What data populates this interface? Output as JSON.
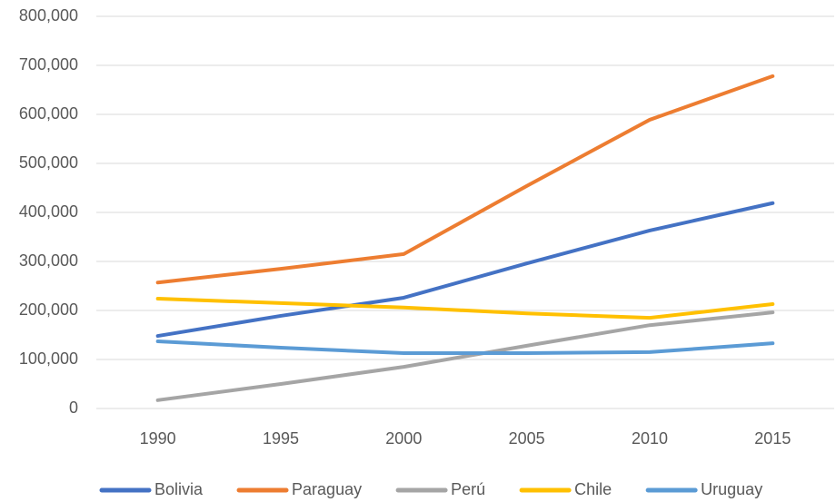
{
  "chart_data": {
    "type": "line",
    "categories": [
      "1990",
      "1995",
      "2000",
      "2005",
      "2010",
      "2015"
    ],
    "series": [
      {
        "name": "Bolivia",
        "color": "#4472c4",
        "values": [
          148000,
          189000,
          226000,
          296000,
          363000,
          419000
        ]
      },
      {
        "name": "Paraguay",
        "color": "#ed7d31",
        "values": [
          257000,
          285000,
          315000,
          454000,
          589000,
          678000
        ]
      },
      {
        "name": "Perú",
        "color": "#a5a5a5",
        "values": [
          17000,
          50000,
          85000,
          128000,
          170000,
          196000
        ]
      },
      {
        "name": "Chile",
        "color": "#ffc000",
        "values": [
          224000,
          215000,
          206000,
          194000,
          185000,
          213000
        ]
      },
      {
        "name": "Uruguay",
        "color": "#5b9bd5",
        "values": [
          137000,
          124000,
          113000,
          113000,
          115000,
          133000
        ]
      }
    ],
    "ylim": [
      0,
      800000
    ],
    "yticks": [
      0,
      {
        "value": 100000,
        "label": "100,000"
      },
      {
        "value": 200000,
        "label": "200,000"
      },
      {
        "value": 300000,
        "label": "300,000"
      },
      {
        "value": 400000,
        "label": "400,000"
      },
      {
        "value": 500000,
        "label": "500,000"
      },
      {
        "value": 600000,
        "label": "600,000"
      },
      {
        "value": 700000,
        "label": "700,000"
      },
      {
        "value": 800000,
        "label": "800,000"
      }
    ],
    "grid": true,
    "legend": "bottom"
  }
}
